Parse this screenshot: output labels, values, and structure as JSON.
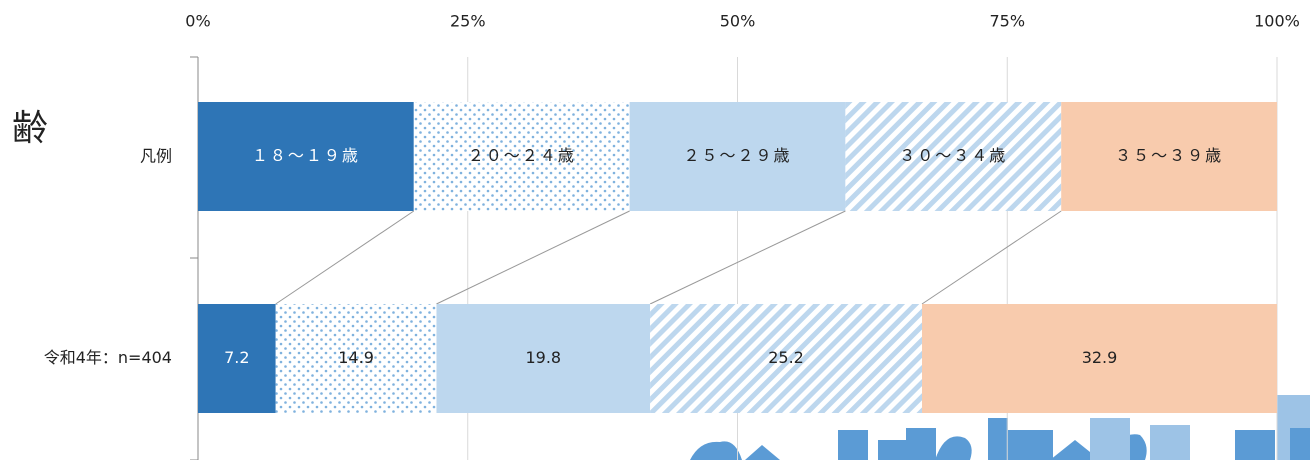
{
  "chart_data": {
    "type": "stacked-barh",
    "title": "齢",
    "legend_label": "凡例",
    "categories": [
      "令和4年：n=404"
    ],
    "series": [
      {
        "name": "１８～１９歳",
        "color": "#2e75b6",
        "pattern": "solid",
        "label_color": "#ffffff",
        "values": [
          7.2
        ]
      },
      {
        "name": "２０～２４歳",
        "color": "#7fb2de",
        "pattern": "dots",
        "label_color": "#222222",
        "values": [
          14.9
        ]
      },
      {
        "name": "２５～２９歳",
        "color": "#bdd7ee",
        "pattern": "solid",
        "label_color": "#222222",
        "values": [
          19.8
        ]
      },
      {
        "name": "３０～３４歳",
        "color": "#bdd7ee",
        "pattern": "stripes",
        "label_color": "#222222",
        "values": [
          25.2
        ]
      },
      {
        "name": "３５～３９歳",
        "color": "#f8cbad",
        "pattern": "solid",
        "label_color": "#222222",
        "values": [
          32.9
        ]
      }
    ],
    "xlim": [
      0,
      100
    ],
    "xticks": [
      {
        "value": 0,
        "label": "0%"
      },
      {
        "value": 25,
        "label": "25%"
      },
      {
        "value": 50,
        "label": "50%"
      },
      {
        "value": 75,
        "label": "75%"
      },
      {
        "value": 100,
        "label": "100%"
      }
    ],
    "grid": true
  }
}
